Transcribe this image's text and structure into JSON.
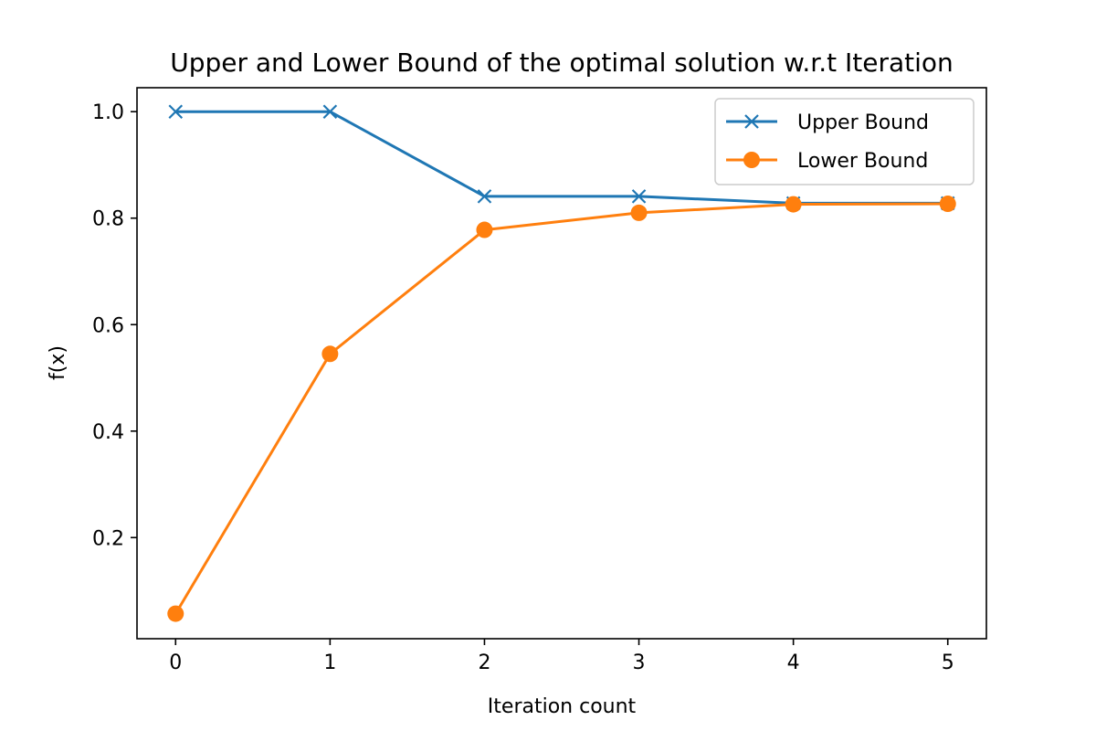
{
  "chart_data": {
    "type": "line",
    "title": "Upper and Lower Bound of the optimal solution w.r.t Iteration",
    "xlabel": "Iteration count",
    "ylabel": "f(x)",
    "x": [
      0,
      1,
      2,
      3,
      4,
      5
    ],
    "xlim": [
      -0.25,
      5.25
    ],
    "ylim": [
      0.01,
      1.045
    ],
    "xticks": [
      "0",
      "1",
      "2",
      "3",
      "4",
      "5"
    ],
    "yticks": [
      "0.2",
      "0.4",
      "0.6",
      "0.8",
      "1.0"
    ],
    "grid": false,
    "legend_position": "top-right",
    "series": [
      {
        "name": "Upper Bound",
        "color": "#1f77b4",
        "marker": "x",
        "values": [
          1.0,
          1.0,
          0.841,
          0.841,
          0.828,
          0.828
        ]
      },
      {
        "name": "Lower Bound",
        "color": "#ff7f0e",
        "marker": "o",
        "values": [
          0.057,
          0.545,
          0.778,
          0.81,
          0.826,
          0.827
        ]
      }
    ]
  }
}
